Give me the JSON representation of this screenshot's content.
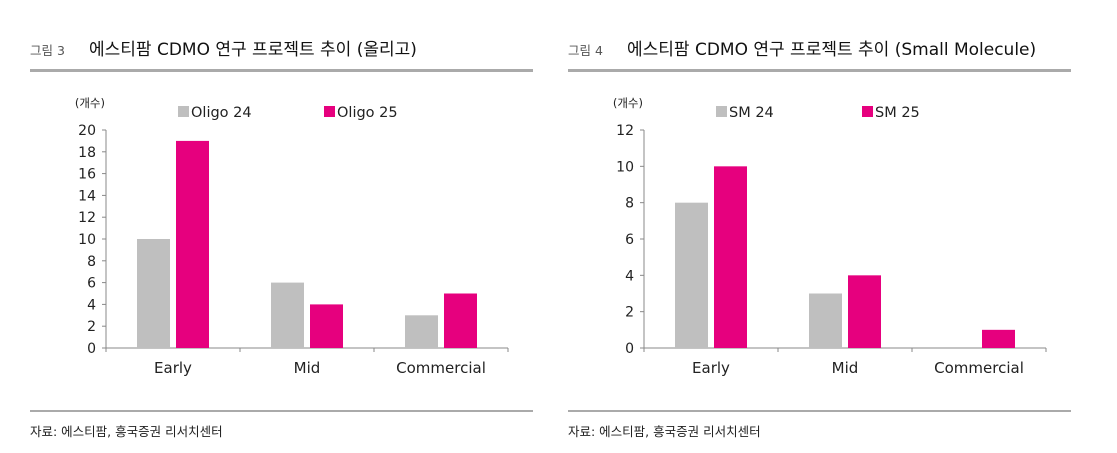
{
  "charts": [
    {
      "fig_num": "그림 3",
      "title": "에스티팜 CDMO 연구 프로젝트 추이 (올리고)",
      "source": "자료: 에스티팜, 흥국증권 리서치센터"
    },
    {
      "fig_num": "그림 4",
      "title": "에스티팜 CDMO 연구 프로젝트 추이 (Small Molecule)",
      "source": "자료: 에스티팜, 흥국증권 리서치센터"
    }
  ],
  "colors": {
    "series_a": "#bfbfbf",
    "series_b": "#e6007e",
    "axis": "#888888"
  },
  "chart_data": [
    {
      "type": "bar",
      "title": "에스티팜 CDMO 연구 프로젝트 추이 (올리고)",
      "ylabel": "(개수)",
      "xlabel": "",
      "categories": [
        "Early",
        "Mid",
        "Commercial"
      ],
      "series": [
        {
          "name": "Oligo 24",
          "values": [
            10,
            6,
            3
          ]
        },
        {
          "name": "Oligo 25",
          "values": [
            19,
            4,
            5
          ]
        }
      ],
      "ylim": [
        0,
        20
      ],
      "yticks": [
        0,
        2,
        4,
        6,
        8,
        10,
        12,
        14,
        16,
        18,
        20
      ],
      "grid": false,
      "legend": "top"
    },
    {
      "type": "bar",
      "title": "에스티팜 CDMO 연구 프로젝트 추이 (Small Molecule)",
      "ylabel": "(개수)",
      "xlabel": "",
      "categories": [
        "Early",
        "Mid",
        "Commercial"
      ],
      "series": [
        {
          "name": "SM 24",
          "values": [
            8,
            3,
            0
          ]
        },
        {
          "name": "SM 25",
          "values": [
            10,
            4,
            1
          ]
        }
      ],
      "ylim": [
        0,
        12
      ],
      "yticks": [
        0,
        2,
        4,
        6,
        8,
        10,
        12
      ],
      "grid": false,
      "legend": "top"
    }
  ]
}
